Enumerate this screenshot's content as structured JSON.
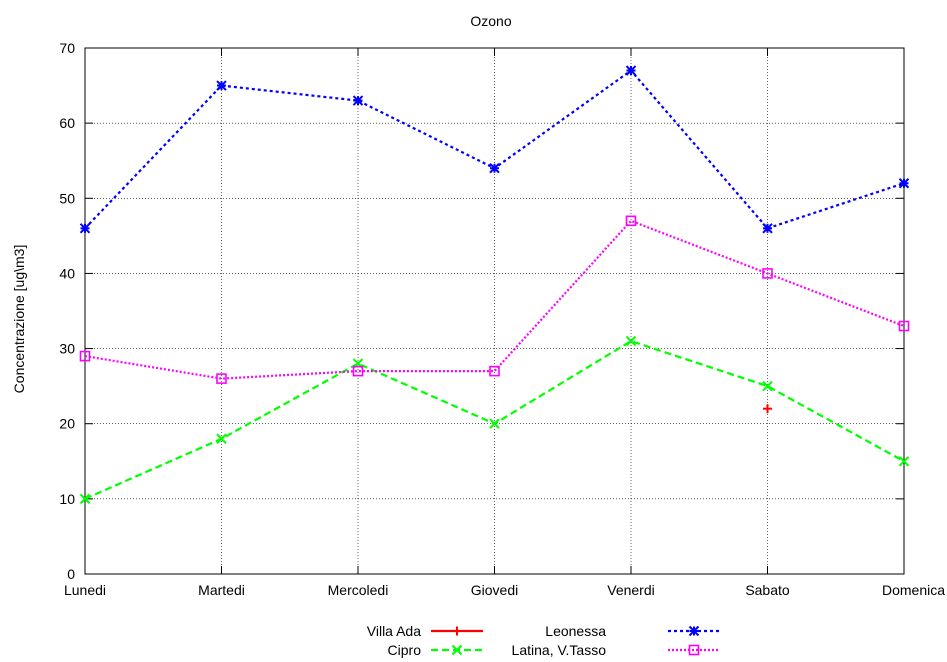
{
  "chart_data": {
    "type": "line",
    "title": "Ozono",
    "xlabel": "",
    "ylabel": "Concentrazione [ug\\m3]",
    "categories": [
      "Lunedi",
      "Martedi",
      "Mercoledi",
      "Giovedi",
      "Venerdi",
      "Sabato",
      "Domenica"
    ],
    "ylim": [
      0,
      70
    ],
    "yticks": [
      0,
      10,
      20,
      30,
      40,
      50,
      60,
      70
    ],
    "grid": true,
    "legend_position": "bottom",
    "series": [
      {
        "name": "Villa Ada",
        "color": "#ff0000",
        "marker": "plus",
        "dash": "solid",
        "values": [
          null,
          null,
          null,
          null,
          null,
          22,
          null
        ]
      },
      {
        "name": "Cipro",
        "color": "#00ff00",
        "marker": "x",
        "dash": "dashed",
        "values": [
          10,
          18,
          28,
          20,
          31,
          25,
          15
        ]
      },
      {
        "name": "Leonessa",
        "color": "#0000ff",
        "marker": "star",
        "dash": "dotted",
        "values": [
          46,
          65,
          63,
          54,
          67,
          46,
          52
        ]
      },
      {
        "name": "Latina, V.Tasso",
        "color": "#ff00ff",
        "marker": "box",
        "dash": "dotted-fine",
        "values": [
          29,
          26,
          27,
          27,
          47,
          40,
          33
        ]
      }
    ]
  }
}
